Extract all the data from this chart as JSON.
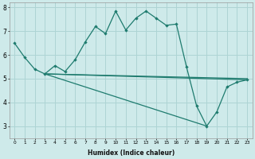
{
  "xlabel": "Humidex (Indice chaleur)",
  "bg_color": "#ceeaea",
  "line_color": "#1e7b6e",
  "grid_color": "#aed4d4",
  "curve_x": [
    0,
    1,
    2,
    3,
    4,
    5,
    6,
    7,
    8,
    9,
    10,
    11,
    12,
    13,
    14,
    15,
    16,
    17,
    18,
    19,
    20,
    21,
    22,
    23
  ],
  "curve_y": [
    6.5,
    5.9,
    5.4,
    5.2,
    5.55,
    5.3,
    5.8,
    6.55,
    7.2,
    6.9,
    7.85,
    7.05,
    7.55,
    7.85,
    7.55,
    7.25,
    7.3,
    5.5,
    3.85,
    3.0,
    3.6,
    4.65,
    4.85,
    4.95
  ],
  "flat_line_x": [
    3,
    23
  ],
  "flat_line_y": [
    5.2,
    5.0
  ],
  "diag_line1_x": [
    3,
    19
  ],
  "diag_line1_y": [
    5.2,
    3.0
  ],
  "diag_line2_x": [
    3,
    23
  ],
  "diag_line2_y": [
    5.2,
    4.95
  ],
  "xlim": [
    -0.5,
    23.5
  ],
  "ylim": [
    2.5,
    8.2
  ],
  "yticks": [
    3,
    4,
    5,
    6,
    7,
    8
  ],
  "xticks": [
    0,
    1,
    2,
    3,
    4,
    5,
    6,
    7,
    8,
    9,
    10,
    11,
    12,
    13,
    14,
    15,
    16,
    17,
    18,
    19,
    20,
    21,
    22,
    23
  ]
}
